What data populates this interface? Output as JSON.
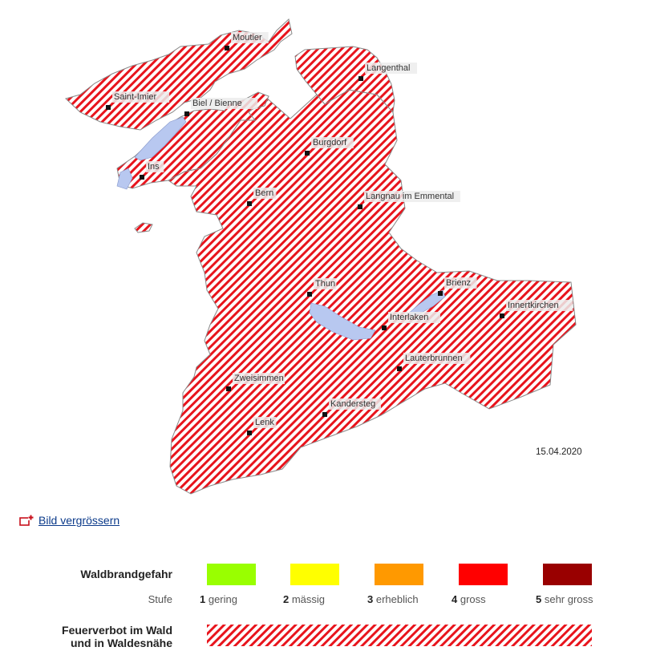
{
  "map": {
    "date": "15.04.2020",
    "towns": [
      {
        "id": "moutier",
        "name": "Moutier"
      },
      {
        "id": "langenthal",
        "name": "Langenthal"
      },
      {
        "id": "saint-imier",
        "name": "Saint-Imier"
      },
      {
        "id": "biel",
        "name": "Biel / Bienne"
      },
      {
        "id": "burgdorf",
        "name": "Burgdorf"
      },
      {
        "id": "ins",
        "name": "Ins"
      },
      {
        "id": "bern",
        "name": "Bern"
      },
      {
        "id": "langnau",
        "name": "Langnau im Emmental"
      },
      {
        "id": "thun",
        "name": "Thun"
      },
      {
        "id": "brienz",
        "name": "Brienz"
      },
      {
        "id": "innertkirchen",
        "name": "Innertkirchen"
      },
      {
        "id": "interlaken",
        "name": "Interlaken"
      },
      {
        "id": "lauterbrunnen",
        "name": "Lauterbrunnen"
      },
      {
        "id": "zweisimmen",
        "name": "Zweisimmen"
      },
      {
        "id": "kandersteg",
        "name": "Kandersteg"
      },
      {
        "id": "lenk",
        "name": "Lenk"
      }
    ],
    "colors": {
      "hatch": "#e8141c",
      "lake": "#b8c8f0",
      "border": "#888888"
    }
  },
  "link": {
    "enlarge_label": "Bild vergrössern"
  },
  "legend": {
    "danger_title": "Waldbrandgefahr",
    "stufe_label": "Stufe",
    "levels": [
      {
        "num": "1",
        "label": "gering",
        "color": "#99ff00"
      },
      {
        "num": "2",
        "label": "mässig",
        "color": "#ffff00"
      },
      {
        "num": "3",
        "label": "erheblich",
        "color": "#ff9900"
      },
      {
        "num": "4",
        "label": "gross",
        "color": "#ff0000"
      },
      {
        "num": "5",
        "label": "sehr gross",
        "color": "#990000"
      }
    ],
    "ban_title_line1": "Feuerverbot im Wald",
    "ban_title_line2": "und in Waldesnähe"
  }
}
